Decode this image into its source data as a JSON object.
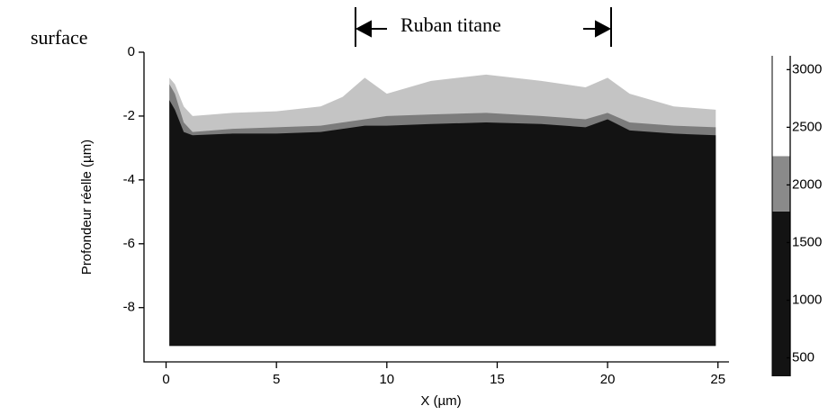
{
  "chart_data": {
    "type": "area",
    "y_label": "Profondeur réelle (µm)",
    "x_label": "X (µm)",
    "annotations": [
      "surface",
      "Ruban titane"
    ],
    "x": [
      0.15,
      0.4,
      0.8,
      1.2,
      3,
      5,
      7,
      8,
      9,
      10,
      12,
      14.5,
      17,
      19,
      20,
      21,
      23,
      24.9
    ],
    "baseline": -9.2,
    "series": [
      {
        "color": "#c4c4c4",
        "values": [
          -0.8,
          -1.0,
          -1.7,
          -2.0,
          -1.9,
          -1.85,
          -1.7,
          -1.4,
          -0.8,
          -1.3,
          -0.9,
          -0.7,
          -0.9,
          -1.1,
          -0.8,
          -1.3,
          -1.7,
          -1.8
        ]
      },
      {
        "color": "#7c7c7c",
        "values": [
          -1.0,
          -1.3,
          -2.2,
          -2.5,
          -2.4,
          -2.35,
          -2.3,
          -2.2,
          -2.1,
          -2.0,
          -1.95,
          -1.9,
          -2.0,
          -2.1,
          -1.9,
          -2.2,
          -2.3,
          -2.35
        ]
      },
      {
        "color": "#131313",
        "values": [
          -1.5,
          -1.8,
          -2.5,
          -2.6,
          -2.55,
          -2.55,
          -2.5,
          -2.4,
          -2.3,
          -2.3,
          -2.25,
          -2.2,
          -2.25,
          -2.35,
          -2.1,
          -2.45,
          -2.55,
          -2.6
        ]
      }
    ],
    "xlim": [
      -1,
      25.5
    ],
    "xticks": [
      0,
      5,
      10,
      15,
      20,
      25
    ],
    "ylim": [
      -9.7,
      0
    ],
    "yticks": [
      0,
      -2,
      -4,
      -6,
      -8
    ],
    "colorbar": {
      "lim": [
        340,
        3120
      ],
      "ticks": [
        500,
        1000,
        1500,
        2000,
        2500,
        3000
      ],
      "segments": [
        {
          "from": 340,
          "to": 1770,
          "color": "#131313"
        },
        {
          "from": 1770,
          "to": 2250,
          "color": "#8a8a8a"
        },
        {
          "from": 2250,
          "to": 3120,
          "color": "#ffffff"
        }
      ]
    }
  }
}
